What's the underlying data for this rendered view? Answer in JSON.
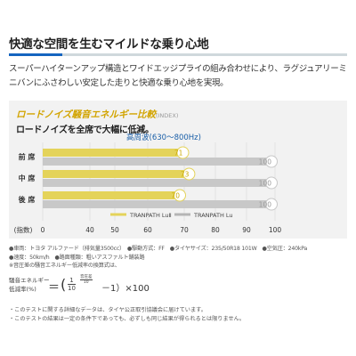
{
  "heading": "快適な空間を生むマイルドな乗り心地",
  "description": "スーパーハイターンアップ構造とワイドエッジプライの組み合わせにより、ラグジュアリーミニバンにふさわしい安定した走りと快適な乗り心地を実現。",
  "panel": {
    "title": "ロードノイズ騒音エネルギー比較",
    "title_sub": "(INDEX)",
    "subtitle": "ロードノイズを全席で大幅に低減。"
  },
  "chart_data": {
    "type": "bar",
    "title": "高周波(630〜800Hz)",
    "xlabel": "(指数)",
    "categories": [
      "前 席",
      "中 席",
      "後 席"
    ],
    "series": [
      {
        "name": "TRANPATH LuⅡ",
        "values": [
          71,
          73,
          70
        ],
        "color": "#e4d35a"
      },
      {
        "name": "TRANPATH Lu",
        "values": [
          100,
          100,
          100
        ],
        "color": "#c8c8c8"
      }
    ],
    "xlim": [
      0,
      100
    ],
    "xticks": [
      "0",
      "40",
      "50",
      "60",
      "70",
      "80",
      "90",
      "100"
    ],
    "legend_position": "bottom-center",
    "grid": true
  },
  "notes": [
    "●車両：トヨタ アルファード（排気量3500cc）　●駆動方式：FF　●タイヤサイズ：235/50R18 101W　●空気圧：240kPa",
    "●速度：50km/h　●路面種類：粗いアスファルト舗装路",
    "※音圧差の騒音エネルギー低減率の換算式は、"
  ],
  "formula": {
    "label_1": "騒音エネルギー",
    "label_2": "低減率(%)",
    "equals": "＝",
    "frac_numerator": "1",
    "frac_denominator": "10",
    "exp_numerator": "音圧差",
    "exp_denominator": "10",
    "tail": "－1）×100"
  },
  "footnotes": [
    "・このテストに関する詳細なデータは、タイヤ公正取引協議会に届けています。",
    "・このテストの結果は一定の条件下であっても、必ずしも同じ結果が得られるとは限りません。"
  ]
}
